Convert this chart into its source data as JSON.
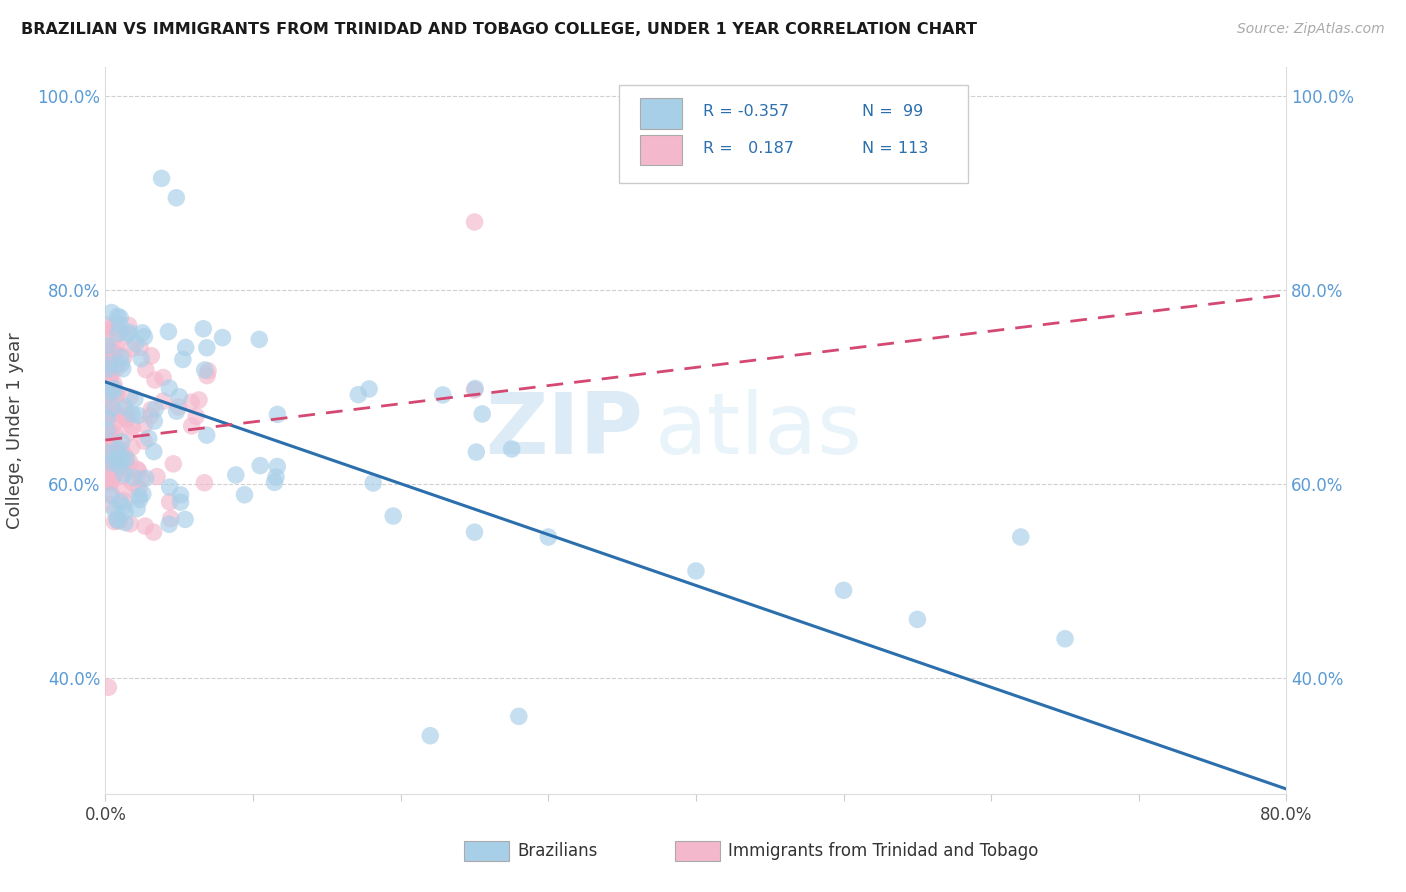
{
  "title": "BRAZILIAN VS IMMIGRANTS FROM TRINIDAD AND TOBAGO COLLEGE, UNDER 1 YEAR CORRELATION CHART",
  "source": "Source: ZipAtlas.com",
  "ylabel": "College, Under 1 year",
  "xlim": [
    0.0,
    0.8
  ],
  "ylim": [
    0.28,
    1.03
  ],
  "xticks": [
    0.0,
    0.1,
    0.2,
    0.3,
    0.4,
    0.5,
    0.6,
    0.7,
    0.8
  ],
  "xticklabels": [
    "0.0%",
    "",
    "",
    "",
    "",
    "",
    "",
    "",
    "80.0%"
  ],
  "yticks": [
    0.4,
    0.6,
    0.8,
    1.0
  ],
  "yticklabels": [
    "40.0%",
    "60.0%",
    "80.0%",
    "100.0%"
  ],
  "blue_color": "#a8cfe8",
  "pink_color": "#f4b8cc",
  "blue_line_color": "#2c6fad",
  "pink_line_color": "#d44872",
  "watermark_zip": "ZIP",
  "watermark_atlas": "atlas",
  "legend_label1": "Brazilians",
  "legend_label2": "Immigrants from Trinidad and Tobago",
  "blue_r": "R = -0.357",
  "blue_n": "N =  99",
  "pink_r": "R =   0.187",
  "pink_n": "N = 113",
  "blue_line_x0": 0.0,
  "blue_line_y0": 0.705,
  "blue_line_x1": 0.8,
  "blue_line_y1": 0.285,
  "pink_line_x0": 0.0,
  "pink_line_y0": 0.645,
  "pink_line_x1": 0.8,
  "pink_line_y1": 0.795
}
